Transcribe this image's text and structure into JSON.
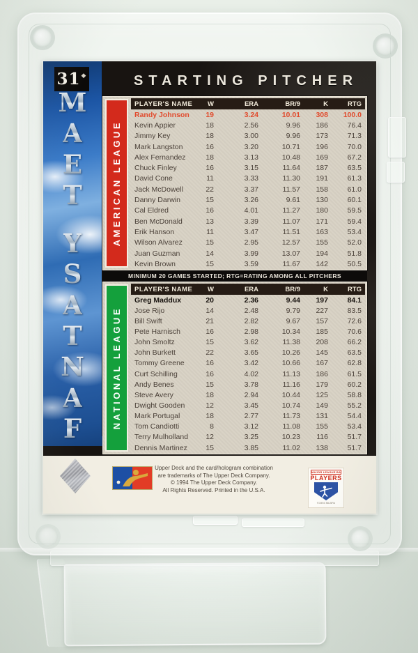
{
  "card": {
    "number": "31",
    "title": "STARTING PITCHER",
    "side_text": "FANTASY TEAM",
    "side_letters": [
      "M",
      "A",
      "E",
      "T",
      "",
      "Y",
      "S",
      "A",
      "T",
      "N",
      "A",
      "F"
    ],
    "note": "MINIMUM 20 GAMES STARTED; RTG=RATING AMONG ALL PITCHERS",
    "colors": {
      "american_league": "#d32a1c",
      "national_league": "#14a03c",
      "leader_red": "#e14b2d",
      "panel_bg": "#d9d3c6"
    },
    "tables": [
      {
        "league": "AMERICAN LEAGUE",
        "columns": [
          "PLAYER'S NAME",
          "W",
          "ERA",
          "BR/9",
          "K",
          "RTG"
        ],
        "rows": [
          {
            "name": "Randy Johnson",
            "w": "19",
            "era": "3.24",
            "br9": "10.01",
            "k": "308",
            "rtg": "100.0",
            "style": "leader-red"
          },
          {
            "name": "Kevin Appier",
            "w": "18",
            "era": "2.56",
            "br9": "9.96",
            "k": "186",
            "rtg": "76.4"
          },
          {
            "name": "Jimmy Key",
            "w": "18",
            "era": "3.00",
            "br9": "9.96",
            "k": "173",
            "rtg": "71.3"
          },
          {
            "name": "Mark Langston",
            "w": "16",
            "era": "3.20",
            "br9": "10.71",
            "k": "196",
            "rtg": "70.0"
          },
          {
            "name": "Alex Fernandez",
            "w": "18",
            "era": "3.13",
            "br9": "10.48",
            "k": "169",
            "rtg": "67.2"
          },
          {
            "name": "Chuck Finley",
            "w": "16",
            "era": "3.15",
            "br9": "11.64",
            "k": "187",
            "rtg": "63.5"
          },
          {
            "name": "David Cone",
            "w": "11",
            "era": "3.33",
            "br9": "11.30",
            "k": "191",
            "rtg": "61.3"
          },
          {
            "name": "Jack McDowell",
            "w": "22",
            "era": "3.37",
            "br9": "11.57",
            "k": "158",
            "rtg": "61.0"
          },
          {
            "name": "Danny Darwin",
            "w": "15",
            "era": "3.26",
            "br9": "9.61",
            "k": "130",
            "rtg": "60.1"
          },
          {
            "name": "Cal Eldred",
            "w": "16",
            "era": "4.01",
            "br9": "11.27",
            "k": "180",
            "rtg": "59.5"
          },
          {
            "name": "Ben McDonald",
            "w": "13",
            "era": "3.39",
            "br9": "11.07",
            "k": "171",
            "rtg": "59.4"
          },
          {
            "name": "Erik Hanson",
            "w": "11",
            "era": "3.47",
            "br9": "11.51",
            "k": "163",
            "rtg": "53.4"
          },
          {
            "name": "Wilson Alvarez",
            "w": "15",
            "era": "2.95",
            "br9": "12.57",
            "k": "155",
            "rtg": "52.0"
          },
          {
            "name": "Juan Guzman",
            "w": "14",
            "era": "3.99",
            "br9": "13.07",
            "k": "194",
            "rtg": "51.8"
          },
          {
            "name": "Kevin Brown",
            "w": "15",
            "era": "3.59",
            "br9": "11.67",
            "k": "142",
            "rtg": "50.5"
          }
        ]
      },
      {
        "league": "NATIONAL LEAGUE",
        "columns": [
          "PLAYER'S NAME",
          "W",
          "ERA",
          "BR/9",
          "K",
          "RTG"
        ],
        "rows": [
          {
            "name": "Greg Maddux",
            "w": "20",
            "era": "2.36",
            "br9": "9.44",
            "k": "197",
            "rtg": "84.1",
            "style": "leader-bold"
          },
          {
            "name": "Jose Rijo",
            "w": "14",
            "era": "2.48",
            "br9": "9.79",
            "k": "227",
            "rtg": "83.5"
          },
          {
            "name": "Bill Swift",
            "w": "21",
            "era": "2.82",
            "br9": "9.67",
            "k": "157",
            "rtg": "72.6"
          },
          {
            "name": "Pete Harnisch",
            "w": "16",
            "era": "2.98",
            "br9": "10.34",
            "k": "185",
            "rtg": "70.6"
          },
          {
            "name": "John Smoltz",
            "w": "15",
            "era": "3.62",
            "br9": "11.38",
            "k": "208",
            "rtg": "66.2"
          },
          {
            "name": "John Burkett",
            "w": "22",
            "era": "3.65",
            "br9": "10.26",
            "k": "145",
            "rtg": "63.5"
          },
          {
            "name": "Tommy Greene",
            "w": "16",
            "era": "3.42",
            "br9": "10.66",
            "k": "167",
            "rtg": "62.8"
          },
          {
            "name": "Curt Schilling",
            "w": "16",
            "era": "4.02",
            "br9": "11.13",
            "k": "186",
            "rtg": "61.5"
          },
          {
            "name": "Andy Benes",
            "w": "15",
            "era": "3.78",
            "br9": "11.16",
            "k": "179",
            "rtg": "60.2"
          },
          {
            "name": "Steve Avery",
            "w": "18",
            "era": "2.94",
            "br9": "10.44",
            "k": "125",
            "rtg": "58.8"
          },
          {
            "name": "Dwight Gooden",
            "w": "12",
            "era": "3.45",
            "br9": "10.74",
            "k": "149",
            "rtg": "55.2"
          },
          {
            "name": "Mark Portugal",
            "w": "18",
            "era": "2.77",
            "br9": "11.73",
            "k": "131",
            "rtg": "54.4"
          },
          {
            "name": "Tom Candiotti",
            "w": "8",
            "era": "3.12",
            "br9": "11.08",
            "k": "155",
            "rtg": "53.4"
          },
          {
            "name": "Terry Mulholland",
            "w": "12",
            "era": "3.25",
            "br9": "10.23",
            "k": "116",
            "rtg": "51.7"
          },
          {
            "name": "Dennis Martinez",
            "w": "15",
            "era": "3.85",
            "br9": "11.02",
            "k": "138",
            "rtg": "51.7"
          }
        ]
      }
    ],
    "footer": {
      "copyright_lines": [
        "Upper Deck and the card/hologram combination",
        "are trademarks of The Upper Deck Company.",
        "© 1994 The Upper Deck Company.",
        "All Rights Reserved. Printed in the U.S.A."
      ],
      "mlbpa_top": "MAJOR LEAGUE BASEBALL",
      "mlbpa_mid": "PLAYERS",
      "mlbpa_bottom": "©1994 MLBPA"
    }
  }
}
